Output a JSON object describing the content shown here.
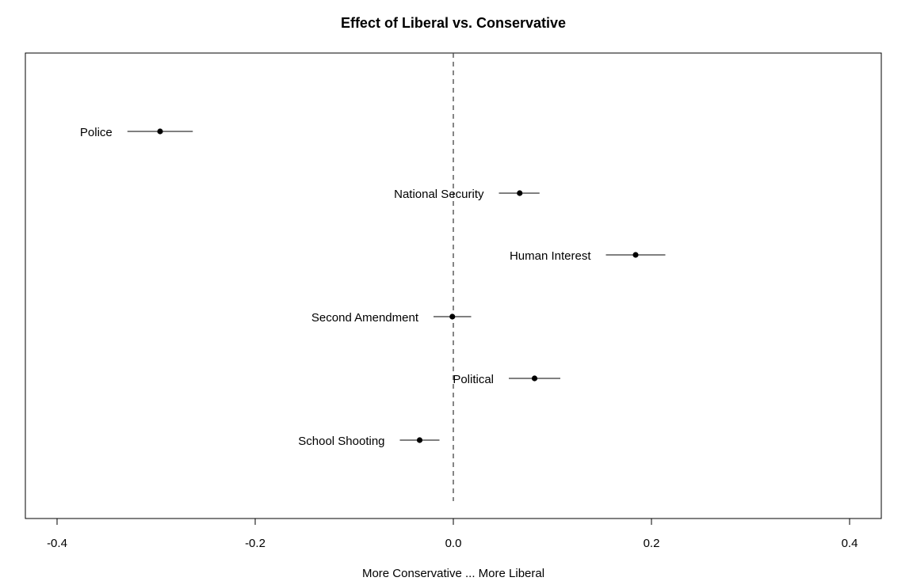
{
  "chart_data": {
    "type": "scatter",
    "title": "Effect of Liberal vs. Conservative",
    "xlabel": "More Conservative ... More Liberal",
    "ylabel": "",
    "xlim": [
      -0.432,
      0.432
    ],
    "xticks": [
      -0.4,
      -0.2,
      0.0,
      0.2,
      0.4
    ],
    "xtick_labels": [
      "-0.4",
      "-0.2",
      "0.0",
      "0.2",
      "0.4"
    ],
    "reference_line": {
      "x": 0.0,
      "style": "dashed"
    },
    "grid": false,
    "points": [
      {
        "label": "Police",
        "estimate": -0.296,
        "ci_low": -0.329,
        "ci_high": -0.263
      },
      {
        "label": "National Security",
        "estimate": 0.067,
        "ci_low": 0.046,
        "ci_high": 0.087
      },
      {
        "label": "Human Interest",
        "estimate": 0.184,
        "ci_low": 0.154,
        "ci_high": 0.214
      },
      {
        "label": "Second Amendment",
        "estimate": -0.001,
        "ci_low": -0.02,
        "ci_high": 0.018
      },
      {
        "label": "Political",
        "estimate": 0.082,
        "ci_low": 0.056,
        "ci_high": 0.108
      },
      {
        "label": "School Shooting",
        "estimate": -0.034,
        "ci_low": -0.054,
        "ci_high": -0.014
      }
    ]
  }
}
